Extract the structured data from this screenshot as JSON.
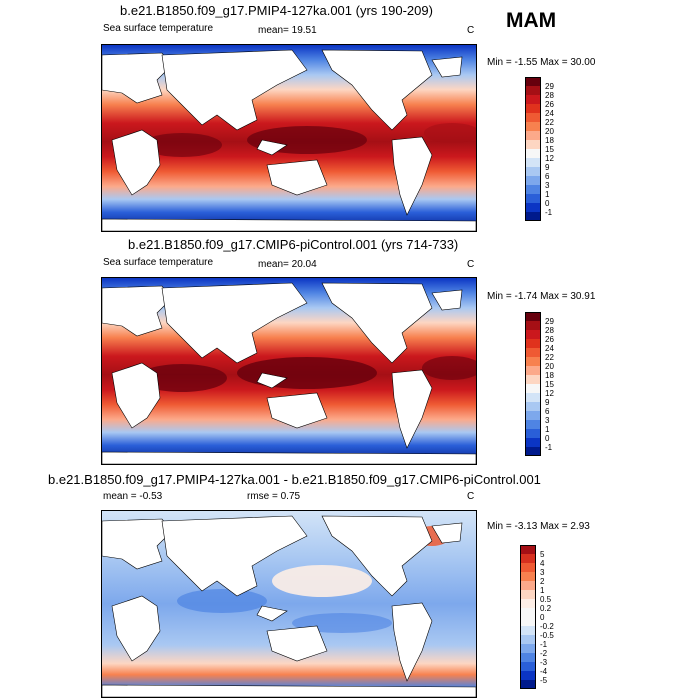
{
  "season": "MAM",
  "panels": [
    {
      "title": "b.e21.B1850.f09_g17.PMIP4-127ka.001 (yrs 190-209)",
      "left_label": "Sea surface temperature",
      "stat_label": "mean=  19.51",
      "units": "C",
      "minmax": "Min =  -1.55 Max =  30.00",
      "colorbar": {
        "labels": [
          "29",
          "28",
          "26",
          "24",
          "22",
          "20",
          "18",
          "15",
          "12",
          "9",
          "6",
          "3",
          "1",
          "0",
          "-1"
        ],
        "colors": [
          "#67000d",
          "#a50f15",
          "#cb181d",
          "#e0321d",
          "#ef5a33",
          "#f7814f",
          "#fca98a",
          "#fdd6c2",
          "#f7f7f7",
          "#d3e4f7",
          "#a9c8f2",
          "#7da8ec",
          "#4f84e3",
          "#2a5fd8",
          "#0b35c4",
          "#001a8c"
        ]
      }
    },
    {
      "title": "b.e21.B1850.f09_g17.CMIP6-piControl.001 (yrs 714-733)",
      "left_label": "Sea surface temperature",
      "stat_label": "mean=  20.04",
      "units": "C",
      "minmax": "Min =  -1.74 Max =  30.91",
      "colorbar": {
        "labels": [
          "29",
          "28",
          "26",
          "24",
          "22",
          "20",
          "18",
          "15",
          "12",
          "9",
          "6",
          "3",
          "1",
          "0",
          "-1"
        ],
        "colors": [
          "#67000d",
          "#a50f15",
          "#cb181d",
          "#e0321d",
          "#ef5a33",
          "#f7814f",
          "#fca98a",
          "#fdd6c2",
          "#f7f7f7",
          "#d3e4f7",
          "#a9c8f2",
          "#7da8ec",
          "#4f84e3",
          "#2a5fd8",
          "#0b35c4",
          "#001a8c"
        ]
      }
    },
    {
      "title": "b.e21.B1850.f09_g17.PMIP4-127ka.001 - b.e21.B1850.f09_g17.CMIP6-piControl.001",
      "left_label": "mean =  -0.53",
      "stat_label": "rmse =   0.75",
      "units": "C",
      "minmax": "Min =  -3.13 Max =   2.93",
      "colorbar": {
        "labels": [
          "5",
          "4",
          "3",
          "2",
          "1",
          "0.5",
          "0.2",
          "0",
          "-0.2",
          "-0.5",
          "-1",
          "-2",
          "-3",
          "-4",
          "-5"
        ],
        "colors": [
          "#a50f15",
          "#d7301f",
          "#ef5a33",
          "#f7814f",
          "#fca98a",
          "#fdd6c2",
          "#fdeee6",
          "#f7f7f7",
          "#f7f7f7",
          "#d3e4f7",
          "#a9c8f2",
          "#7da8ec",
          "#4f84e3",
          "#2a5fd8",
          "#0b35c4",
          "#001a8c"
        ]
      }
    }
  ]
}
